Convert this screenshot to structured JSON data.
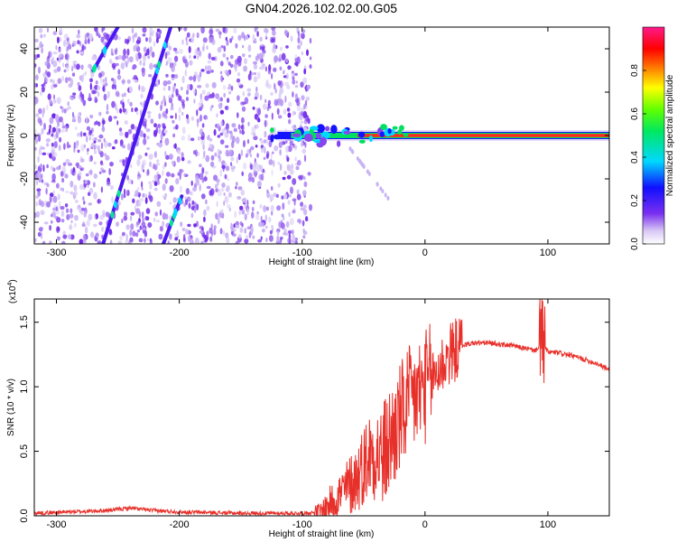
{
  "chart_data": [
    {
      "type": "heatmap",
      "title": "GN04.2026.102.02.00.G05",
      "xlabel": "Height of straight line (km)",
      "ylabel": "Frequency (Hz)",
      "xlim": [
        -318,
        150
      ],
      "ylim": [
        -50,
        50
      ],
      "xticks": [
        -300,
        -200,
        -100,
        0,
        100
      ],
      "yticks": [
        -40,
        -20,
        0,
        20,
        40
      ],
      "xtick_labels": [
        "-300",
        "-200",
        "-100",
        "0",
        "100"
      ],
      "ytick_labels": [
        "-40",
        "-20",
        "0",
        "20",
        "40"
      ],
      "colorbar": {
        "label": "Normalized spectral amplitude",
        "range": [
          0,
          1
        ],
        "ticks": [
          0.0,
          0.2,
          0.4,
          0.6,
          0.8
        ],
        "tick_labels": [
          "0.0",
          "0.2",
          "0.4",
          "0.6",
          "0.8"
        ]
      },
      "features": [
        {
          "name": "speckle-noise-region",
          "x_range": [
            -318,
            -93
          ],
          "y_range": [
            -50,
            50
          ],
          "amplitude": 0.15
        },
        {
          "name": "zero-frequency-band",
          "x_range": [
            -120,
            150
          ],
          "y": 0,
          "amplitude": 0.95
        },
        {
          "name": "streak-1",
          "from": [
            -270,
            30
          ],
          "to": [
            -250,
            50
          ],
          "amplitude": 0.3
        },
        {
          "name": "streak-2",
          "from": [
            -262,
            -50
          ],
          "to": [
            -207,
            50
          ],
          "amplitude": 0.3
        },
        {
          "name": "streak-3",
          "from": [
            -213,
            -50
          ],
          "to": [
            -198,
            -28
          ],
          "amplitude": 0.25
        }
      ]
    },
    {
      "type": "line",
      "xlabel": "Height of straight line (km)",
      "ylabel": "SNR (10 * v/v)",
      "multiplier_label": "(x10",
      "multiplier_exp": "4",
      "multiplier_close": ")",
      "xlim": [
        -318,
        150
      ],
      "ylim": [
        0,
        1.68
      ],
      "xticks": [
        -300,
        -200,
        -100,
        0,
        100
      ],
      "yticks": [
        0.0,
        0.5,
        1.0,
        1.5
      ],
      "xtick_labels": [
        "-300",
        "-200",
        "-100",
        "0",
        "100"
      ],
      "ytick_labels": [
        "0.0",
        "0.5",
        "1.0",
        "1.5"
      ],
      "color": "#e8302a",
      "series": [
        {
          "name": "SNR",
          "x": [
            -318,
            -290,
            -260,
            -240,
            -220,
            -200,
            -150,
            -100,
            -85,
            -75,
            -65,
            -55,
            -50,
            -45,
            -40,
            -35,
            -30,
            -25,
            -20,
            -15,
            -10,
            -5,
            0,
            10,
            20,
            30,
            40,
            50,
            60,
            70,
            80,
            90,
            95,
            100,
            110,
            120,
            130,
            140,
            150
          ],
          "y": [
            0.02,
            0.03,
            0.04,
            0.06,
            0.04,
            0.03,
            0.02,
            0.02,
            0.03,
            0.12,
            0.2,
            0.3,
            0.4,
            0.48,
            0.5,
            0.45,
            0.55,
            0.65,
            0.75,
            0.85,
            0.9,
            0.95,
            1.0,
            1.12,
            1.25,
            1.32,
            1.34,
            1.34,
            1.33,
            1.32,
            1.3,
            1.28,
            1.35,
            1.27,
            1.26,
            1.24,
            1.21,
            1.18,
            1.13
          ]
        }
      ]
    }
  ]
}
